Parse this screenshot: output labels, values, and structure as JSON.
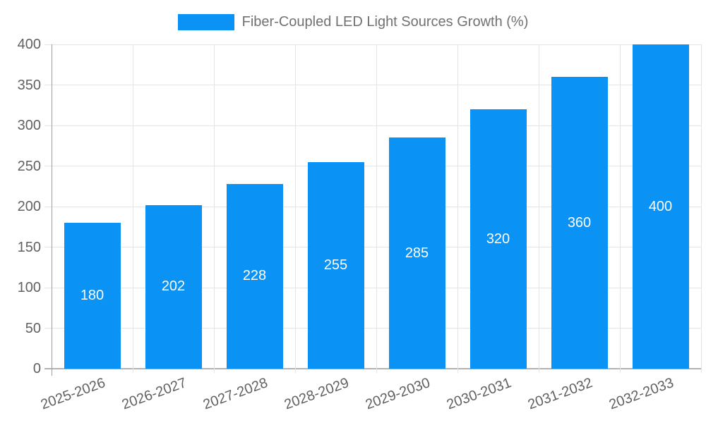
{
  "chart_data": {
    "type": "bar",
    "title": "Fiber-Coupled LED Light Sources Growth (%)",
    "legend": {
      "position": "top",
      "entries": [
        "Fiber-Coupled LED Light Sources Growth (%)"
      ]
    },
    "categories": [
      "2025-2026",
      "2026-2027",
      "2027-2028",
      "2028-2029",
      "2029-2030",
      "2030-2031",
      "2031-2032",
      "2032-2033"
    ],
    "series": [
      {
        "name": "Fiber-Coupled LED Light Sources Growth (%)",
        "values": [
          180,
          202,
          228,
          255,
          285,
          320,
          360,
          400
        ]
      }
    ],
    "xlabel": "",
    "ylabel": "",
    "ylim": [
      0,
      400
    ],
    "ytick_step": 50,
    "yticks": [
      0,
      50,
      100,
      150,
      200,
      250,
      300,
      350,
      400
    ],
    "grid": true,
    "bar_color": "#0a92f4",
    "value_label_color": "#ffffff",
    "axis_text_color": "#616161",
    "gridline_color": "#e4e4e4",
    "axis_line_color": "#9e9e9e"
  }
}
